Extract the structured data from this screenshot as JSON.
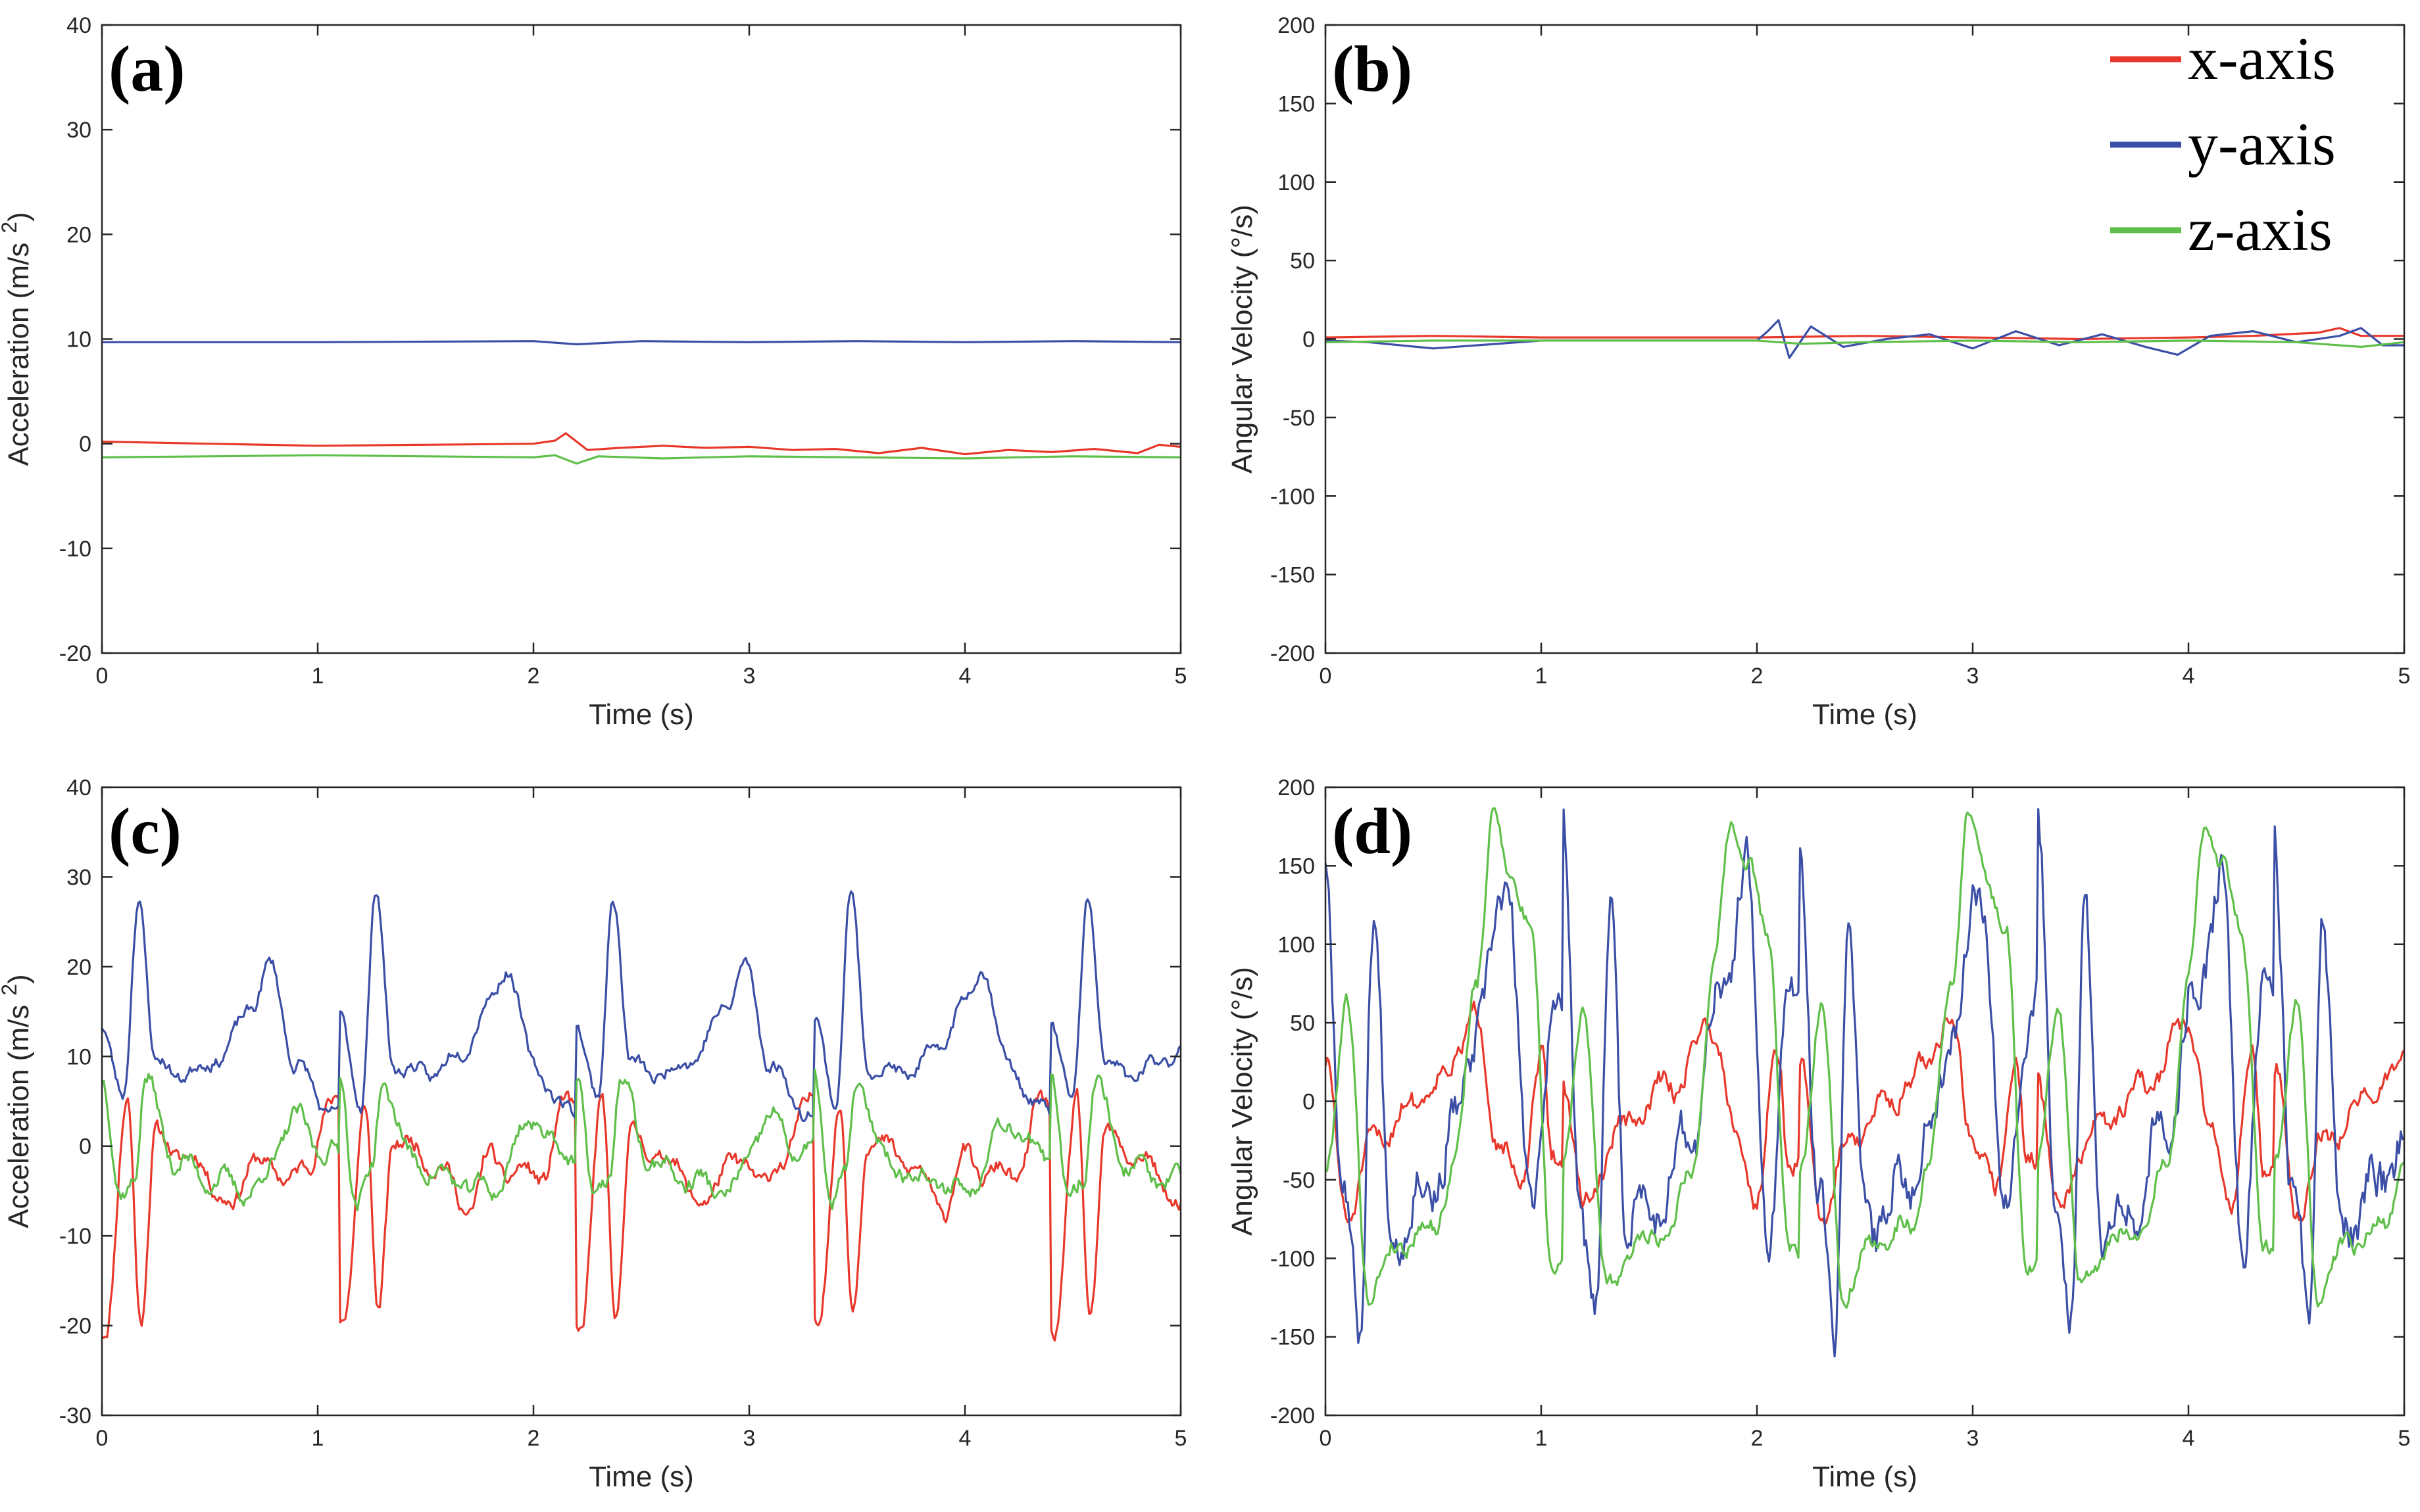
{
  "colors": {
    "x": "#e8382c",
    "y": "#3b4fa6",
    "z": "#5fbf4a",
    "axis": "#262626"
  },
  "legend": [
    {
      "key": "x",
      "label": "x-axis"
    },
    {
      "key": "y",
      "label": "y-axis"
    },
    {
      "key": "z",
      "label": "z-axis"
    }
  ],
  "chart_data": [
    {
      "id": "a",
      "label": "(a)",
      "type": "line",
      "xlabel": "Time (s)",
      "ylabel": "Acceleration (m/s",
      "ylabel_sup": "2",
      "ylabel_close": ")",
      "xlim": [
        0,
        5
      ],
      "ylim": [
        -20,
        40
      ],
      "xticks": [
        0,
        1,
        2,
        3,
        4,
        5
      ],
      "yticks": [
        -20,
        -10,
        0,
        10,
        20,
        30,
        40
      ],
      "series": [
        {
          "name": "x-axis",
          "key": "x",
          "kind": "line",
          "points": [
            [
              0,
              0.2
            ],
            [
              0.5,
              0.0
            ],
            [
              1.0,
              -0.2
            ],
            [
              1.5,
              -0.1
            ],
            [
              2.0,
              0.0
            ],
            [
              2.1,
              0.3
            ],
            [
              2.15,
              1.0
            ],
            [
              2.25,
              -0.6
            ],
            [
              2.4,
              -0.4
            ],
            [
              2.6,
              -0.2
            ],
            [
              2.8,
              -0.4
            ],
            [
              3.0,
              -0.3
            ],
            [
              3.2,
              -0.6
            ],
            [
              3.4,
              -0.5
            ],
            [
              3.6,
              -0.9
            ],
            [
              3.8,
              -0.4
            ],
            [
              4.0,
              -1.0
            ],
            [
              4.2,
              -0.6
            ],
            [
              4.4,
              -0.8
            ],
            [
              4.6,
              -0.5
            ],
            [
              4.8,
              -0.9
            ],
            [
              4.9,
              -0.1
            ],
            [
              5.0,
              -0.3
            ]
          ]
        },
        {
          "name": "y-axis",
          "key": "y",
          "kind": "line",
          "points": [
            [
              0,
              9.7
            ],
            [
              1,
              9.7
            ],
            [
              2,
              9.8
            ],
            [
              2.2,
              9.5
            ],
            [
              2.5,
              9.8
            ],
            [
              3,
              9.7
            ],
            [
              3.5,
              9.8
            ],
            [
              4,
              9.7
            ],
            [
              4.5,
              9.8
            ],
            [
              5,
              9.7
            ]
          ]
        },
        {
          "name": "z-axis",
          "key": "z",
          "kind": "line",
          "points": [
            [
              0,
              -1.3
            ],
            [
              0.5,
              -1.2
            ],
            [
              1.0,
              -1.1
            ],
            [
              1.5,
              -1.2
            ],
            [
              2.0,
              -1.3
            ],
            [
              2.1,
              -1.1
            ],
            [
              2.2,
              -1.9
            ],
            [
              2.3,
              -1.2
            ],
            [
              2.6,
              -1.4
            ],
            [
              3.0,
              -1.2
            ],
            [
              3.5,
              -1.3
            ],
            [
              4.0,
              -1.4
            ],
            [
              4.5,
              -1.2
            ],
            [
              5.0,
              -1.3
            ]
          ]
        }
      ]
    },
    {
      "id": "b",
      "label": "(b)",
      "type": "line",
      "xlabel": "Time (s)",
      "ylabel": "Angular Velocity (°/s)",
      "xlim": [
        0,
        5
      ],
      "ylim": [
        -200,
        200
      ],
      "xticks": [
        0,
        1,
        2,
        3,
        4,
        5
      ],
      "yticks": [
        -200,
        -150,
        -100,
        -50,
        0,
        50,
        100,
        150,
        200
      ],
      "series": [
        {
          "name": "x-axis",
          "key": "x",
          "kind": "line",
          "points": [
            [
              0,
              1
            ],
            [
              0.5,
              2
            ],
            [
              1.0,
              1
            ],
            [
              1.5,
              1
            ],
            [
              2.0,
              1
            ],
            [
              2.5,
              2
            ],
            [
              3.0,
              1
            ],
            [
              3.5,
              0
            ],
            [
              4.0,
              1
            ],
            [
              4.3,
              2
            ],
            [
              4.6,
              4
            ],
            [
              4.7,
              7
            ],
            [
              4.8,
              2
            ],
            [
              5.0,
              2
            ]
          ]
        },
        {
          "name": "y-axis",
          "key": "y",
          "kind": "line",
          "points": [
            [
              0,
              -1
            ],
            [
              0.2,
              -2
            ],
            [
              0.5,
              -6
            ],
            [
              1.0,
              -1
            ],
            [
              1.5,
              -1
            ],
            [
              2.0,
              -1
            ],
            [
              2.05,
              5
            ],
            [
              2.1,
              12
            ],
            [
              2.15,
              -12
            ],
            [
              2.25,
              8
            ],
            [
              2.4,
              -5
            ],
            [
              2.6,
              0
            ],
            [
              2.8,
              3
            ],
            [
              3.0,
              -6
            ],
            [
              3.2,
              5
            ],
            [
              3.4,
              -4
            ],
            [
              3.6,
              3
            ],
            [
              3.8,
              -5
            ],
            [
              3.95,
              -10
            ],
            [
              4.1,
              2
            ],
            [
              4.3,
              5
            ],
            [
              4.5,
              -2
            ],
            [
              4.7,
              2
            ],
            [
              4.8,
              7
            ],
            [
              4.9,
              -4
            ],
            [
              5.0,
              -4
            ]
          ]
        },
        {
          "name": "z-axis",
          "key": "z",
          "kind": "line",
          "points": [
            [
              0,
              -2
            ],
            [
              0.5,
              -1
            ],
            [
              1.0,
              -1
            ],
            [
              1.5,
              -1
            ],
            [
              2.0,
              -1
            ],
            [
              2.2,
              -3
            ],
            [
              2.5,
              -2
            ],
            [
              3.0,
              -1
            ],
            [
              3.5,
              -2
            ],
            [
              4.0,
              -1
            ],
            [
              4.5,
              -2
            ],
            [
              4.8,
              -5
            ],
            [
              5.0,
              -2
            ]
          ]
        }
      ]
    },
    {
      "id": "c",
      "label": "(c)",
      "type": "line",
      "xlabel": "Time (s)",
      "ylabel": "Acceleration (m/s",
      "ylabel_sup": "2",
      "ylabel_close": ")",
      "xlim": [
        0,
        5
      ],
      "ylim": [
        -30,
        40
      ],
      "xticks": [
        0,
        1,
        2,
        3,
        4,
        5
      ],
      "yticks": [
        -30,
        -20,
        -10,
        0,
        10,
        20,
        30,
        40
      ],
      "series": [
        {
          "name": "x-axis",
          "key": "x",
          "kind": "cycles",
          "period": 1.1,
          "start": 0.0,
          "end": 5.0,
          "base": 0,
          "seed": 11,
          "noise": 1.5,
          "events": [
            [
              0.02,
              -20
            ],
            [
              0.12,
              5
            ],
            [
              0.18,
              -19
            ],
            [
              0.25,
              1
            ],
            [
              0.45,
              -2
            ],
            [
              0.6,
              -7
            ],
            [
              0.7,
              -1
            ],
            [
              0.78,
              -3
            ],
            [
              0.95,
              -3
            ],
            [
              1.05,
              5
            ]
          ]
        },
        {
          "name": "y-axis",
          "key": "y",
          "kind": "cycles",
          "period": 1.1,
          "start": 0.0,
          "end": 5.0,
          "base": 9,
          "seed": 23,
          "noise": 1.2,
          "events": [
            [
              0.0,
              14
            ],
            [
              0.1,
              5
            ],
            [
              0.17,
              28
            ],
            [
              0.25,
              9
            ],
            [
              0.4,
              8
            ],
            [
              0.55,
              10
            ],
            [
              0.7,
              16
            ],
            [
              0.78,
              20
            ],
            [
              0.9,
              9
            ],
            [
              1.05,
              4
            ]
          ]
        },
        {
          "name": "z-axis",
          "key": "z",
          "kind": "cycles",
          "period": 1.1,
          "start": 0.0,
          "end": 5.0,
          "base": -2,
          "seed": 37,
          "noise": 1.6,
          "events": [
            [
              0.0,
              8
            ],
            [
              0.08,
              -6
            ],
            [
              0.15,
              -3
            ],
            [
              0.2,
              7
            ],
            [
              0.35,
              -2
            ],
            [
              0.55,
              -4
            ],
            [
              0.7,
              -5
            ],
            [
              0.9,
              3
            ],
            [
              1.05,
              -1
            ]
          ]
        }
      ]
    },
    {
      "id": "d",
      "label": "(d)",
      "type": "line",
      "xlabel": "Time (s)",
      "ylabel": "Angular Velocity (°/s)",
      "xlim": [
        0,
        5
      ],
      "ylim": [
        -200,
        200
      ],
      "xticks": [
        0,
        1,
        2,
        3,
        4,
        5
      ],
      "yticks": [
        -200,
        -150,
        -100,
        -50,
        0,
        50,
        100,
        150,
        200
      ],
      "series": [
        {
          "name": "x-axis",
          "key": "x",
          "kind": "cycles",
          "period": 1.1,
          "start": 0.0,
          "end": 5.0,
          "base": -5,
          "seed": 51,
          "noise": 12,
          "events": [
            [
              0.0,
              20
            ],
            [
              0.1,
              -70
            ],
            [
              0.25,
              -20
            ],
            [
              0.5,
              10
            ],
            [
              0.7,
              50
            ],
            [
              0.8,
              -20
            ],
            [
              0.9,
              -60
            ],
            [
              1.0,
              30
            ],
            [
              1.05,
              -40
            ]
          ]
        },
        {
          "name": "y-axis",
          "key": "y",
          "kind": "cycles",
          "period": 1.1,
          "start": 0.0,
          "end": 5.0,
          "base": -30,
          "seed": 67,
          "noise": 25,
          "events": [
            [
              0.0,
              170
            ],
            [
              0.08,
              -60
            ],
            [
              0.16,
              -140
            ],
            [
              0.22,
              120
            ],
            [
              0.3,
              -80
            ],
            [
              0.45,
              -60
            ],
            [
              0.6,
              -20
            ],
            [
              0.72,
              60
            ],
            [
              0.85,
              140
            ],
            [
              0.95,
              -80
            ],
            [
              1.05,
              60
            ]
          ]
        },
        {
          "name": "z-axis",
          "key": "z",
          "kind": "cycles",
          "period": 1.1,
          "start": 0.0,
          "end": 5.0,
          "base": -60,
          "seed": 79,
          "noise": 10,
          "events": [
            [
              0.0,
              -40
            ],
            [
              0.1,
              60
            ],
            [
              0.2,
              -120
            ],
            [
              0.35,
              -90
            ],
            [
              0.5,
              -80
            ],
            [
              0.6,
              -40
            ],
            [
              0.7,
              80
            ],
            [
              0.78,
              180
            ],
            [
              0.85,
              150
            ],
            [
              0.95,
              110
            ],
            [
              1.05,
              -100
            ]
          ]
        }
      ]
    }
  ]
}
